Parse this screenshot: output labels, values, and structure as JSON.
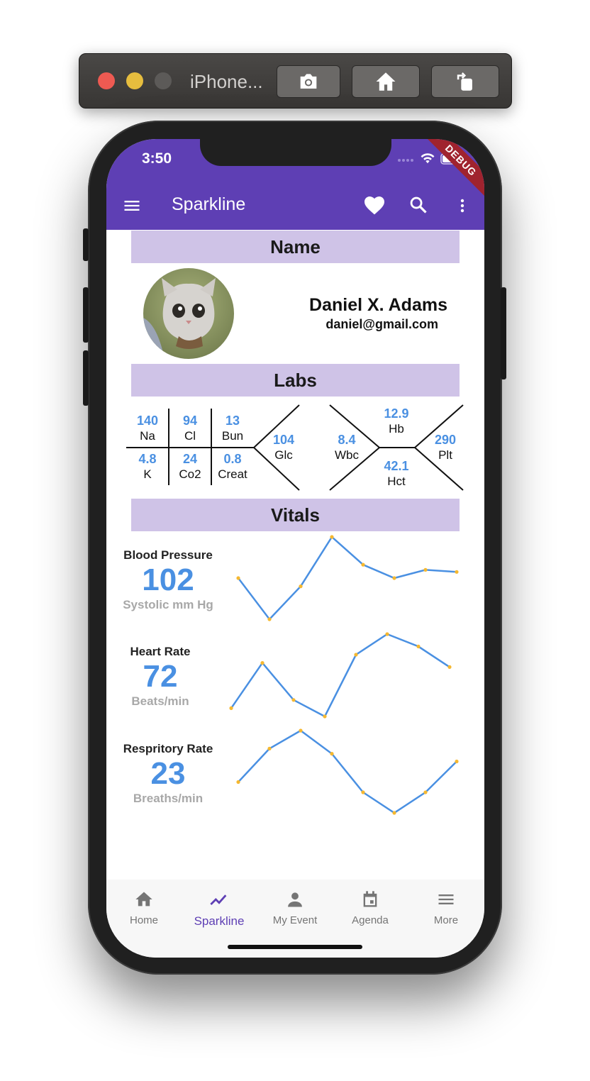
{
  "simulator": {
    "title": "iPhone..."
  },
  "status": {
    "time": "3:50",
    "debug": "DEBUG"
  },
  "appbar": {
    "title": "Sparkline"
  },
  "sections": {
    "name": "Name",
    "labs": "Labs",
    "vitals": "Vitals"
  },
  "profile": {
    "name": "Daniel X. Adams",
    "email": "daniel@gmail.com"
  },
  "labs": {
    "bmp": {
      "na": {
        "value": "140",
        "label": "Na"
      },
      "cl": {
        "value": "94",
        "label": "Cl"
      },
      "bun": {
        "value": "13",
        "label": "Bun"
      },
      "k": {
        "value": "4.8",
        "label": "K"
      },
      "co2": {
        "value": "24",
        "label": "Co2"
      },
      "creat": {
        "value": "0.8",
        "label": "Creat"
      },
      "glc": {
        "value": "104",
        "label": "Glc"
      }
    },
    "cbc": {
      "hb": {
        "value": "12.9",
        "label": "Hb"
      },
      "wbc": {
        "value": "8.4",
        "label": "Wbc"
      },
      "plt": {
        "value": "290",
        "label": "Plt"
      },
      "hct": {
        "value": "42.1",
        "label": "Hct"
      }
    }
  },
  "vitals": [
    {
      "title": "Blood Pressure",
      "value": "102",
      "unit": "Systolic mm Hg",
      "sparkline": [
        4,
        0,
        3.2,
        8,
        5.3,
        4,
        4.8,
        4.6
      ]
    },
    {
      "title": "Heart Rate",
      "value": "72",
      "unit": "Beats/min",
      "sparkline": [
        0,
        5.5,
        1,
        -1,
        6.5,
        9,
        7.5,
        5
      ]
    },
    {
      "title": "Respritory Rate",
      "value": "23",
      "unit": "Breaths/min",
      "sparkline": [
        1,
        7.5,
        11,
        6.5,
        -1,
        -5,
        -1,
        5
      ]
    }
  ],
  "colors": {
    "primary": "#5e3fb4",
    "accent": "#4a90e2",
    "section": "#cfc3e7",
    "point": "#f5b830"
  },
  "nav": [
    {
      "label": "Home",
      "icon": "home-icon"
    },
    {
      "label": "Sparkline",
      "icon": "sparkline-icon",
      "active": true
    },
    {
      "label": "My Event",
      "icon": "person-icon"
    },
    {
      "label": "Agenda",
      "icon": "calendar-icon"
    },
    {
      "label": "More",
      "icon": "menu-icon"
    }
  ]
}
